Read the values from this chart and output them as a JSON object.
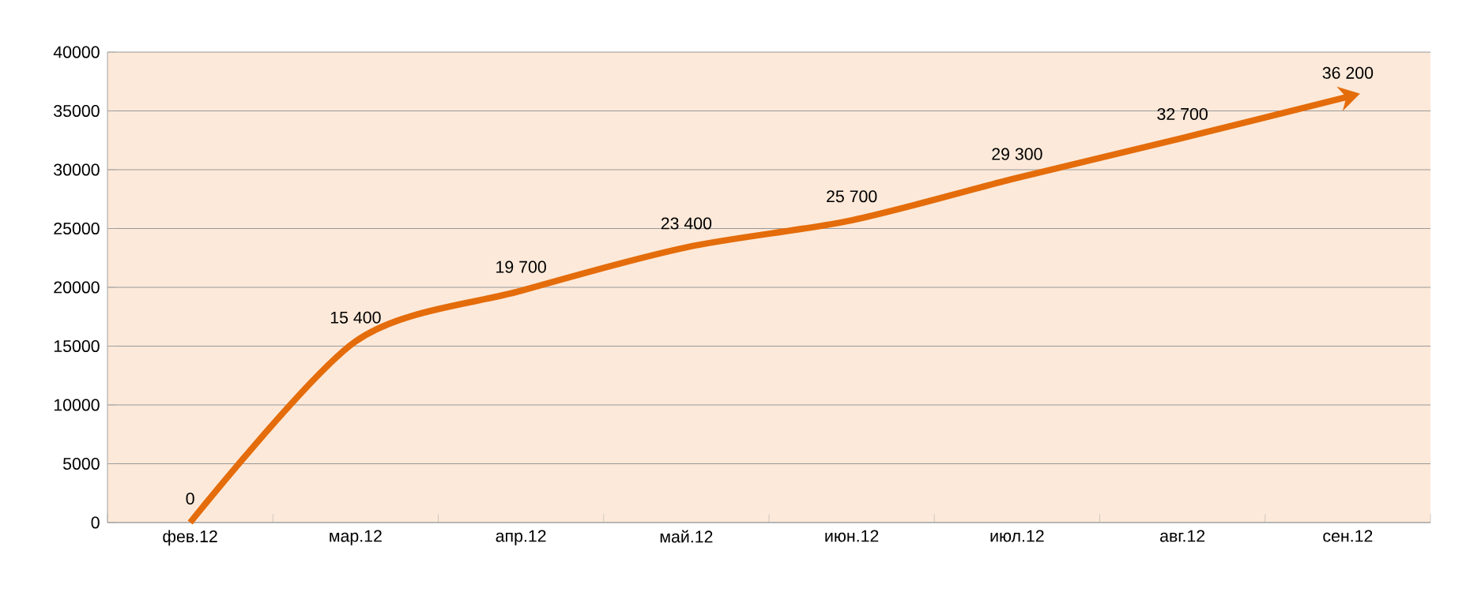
{
  "chart_data": {
    "type": "line",
    "categories": [
      "фев.12",
      "мар.12",
      "апр.12",
      "май.12",
      "июн.12",
      "июл.12",
      "авг.12",
      "сен.12"
    ],
    "values": [
      0,
      15400,
      19700,
      23400,
      25700,
      29300,
      32700,
      36200
    ],
    "value_labels": [
      "0",
      "15 400",
      "19 700",
      "23 400",
      "25 700",
      "29 300",
      "32 700",
      "36 200"
    ],
    "color": "#e46c0a",
    "ylim": [
      0,
      40000
    ],
    "yticks": [
      0,
      5000,
      10000,
      15000,
      20000,
      25000,
      30000,
      35000,
      40000
    ],
    "grid": "y",
    "line_style": "solid"
  }
}
